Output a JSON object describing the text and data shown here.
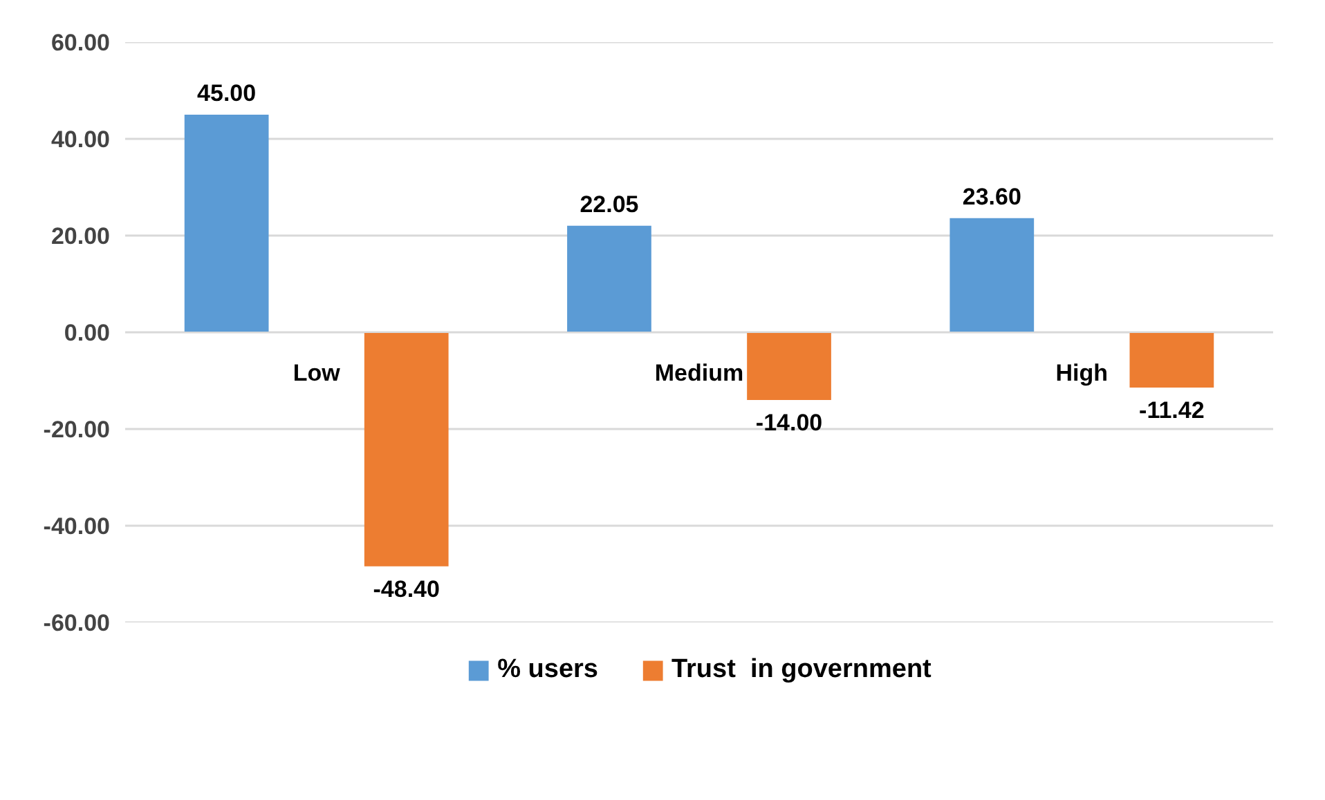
{
  "chart_data": {
    "type": "bar",
    "categories": [
      "Low",
      "Medium",
      "High"
    ],
    "series": [
      {
        "name": "% users",
        "color": "#5b9bd5",
        "values": [
          45.0,
          22.05,
          23.6
        ],
        "value_labels": [
          "45.00",
          "22.05",
          "23.60"
        ]
      },
      {
        "name": "Trust  in government",
        "color": "#ed7d31",
        "values": [
          -48.4,
          -14.0,
          -11.42
        ],
        "value_labels": [
          "-48.40",
          "-14.00",
          "-11.42"
        ]
      }
    ],
    "ylim": [
      -60,
      60
    ],
    "yticks": [
      {
        "value": 60,
        "label": "60.00"
      },
      {
        "value": 40,
        "label": "40.00"
      },
      {
        "value": 20,
        "label": "20.00"
      },
      {
        "value": 0,
        "label": "0.00"
      },
      {
        "value": -20,
        "label": "-20.00"
      },
      {
        "value": -40,
        "label": "-40.00"
      },
      {
        "value": -60,
        "label": "-60.00"
      }
    ],
    "grid": "y",
    "legend": "bottom"
  }
}
